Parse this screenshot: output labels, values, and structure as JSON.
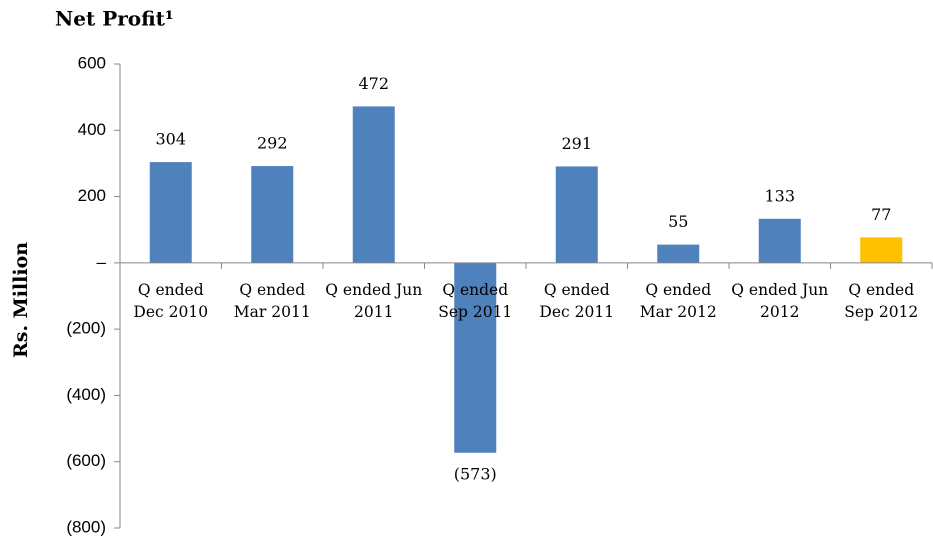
{
  "chart_data": {
    "type": "bar",
    "title": "Net Profit¹",
    "y_label": "Rs. Million",
    "categories": [
      "Q ended Dec 2010",
      "Q ended Mar 2011",
      "Q ended Jun 2011",
      "Q ended Sep 2011",
      "Q ended Dec 2011",
      "Q ended Mar 2012",
      "Q ended Jun 2012",
      "Q ended Sep 2012"
    ],
    "values": [
      304,
      292,
      472,
      -573,
      291,
      55,
      133,
      77
    ],
    "value_labels": [
      "304",
      "292",
      "472",
      "(573)",
      "291",
      "55",
      "133",
      "77"
    ],
    "colors": [
      "#4f81bd",
      "#4f81bd",
      "#4f81bd",
      "#4f81bd",
      "#4f81bd",
      "#4f81bd",
      "#4f81bd",
      "#ffc000"
    ],
    "ylim": [
      -800,
      600
    ],
    "yticks": [
      {
        "value": -800,
        "label": "(800)"
      },
      {
        "value": -600,
        "label": "(600)"
      },
      {
        "value": -400,
        "label": "(400)"
      },
      {
        "value": -200,
        "label": "(200)"
      },
      {
        "value": 0,
        "label": "–"
      },
      200,
      400,
      600
    ],
    "grid": false
  }
}
